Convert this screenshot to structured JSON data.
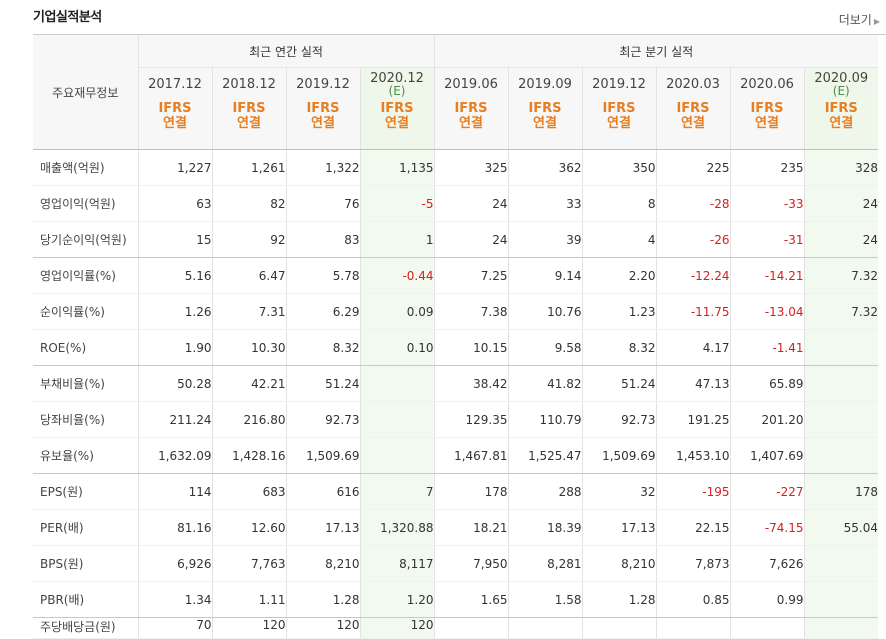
{
  "section": {
    "title": "기업실적분석",
    "more": "더보기"
  },
  "header": {
    "row_label": "주요재무정보",
    "annual_group": "최근 연간 실적",
    "quarter_group": "최근 분기 실적",
    "ifrs": "IFRS",
    "consolidated": "연결",
    "periods": [
      {
        "label": "2017.12",
        "est": ""
      },
      {
        "label": "2018.12",
        "est": ""
      },
      {
        "label": "2019.12",
        "est": ""
      },
      {
        "label": "2020.12",
        "est": "(E)"
      },
      {
        "label": "2019.06",
        "est": ""
      },
      {
        "label": "2019.09",
        "est": ""
      },
      {
        "label": "2019.12",
        "est": ""
      },
      {
        "label": "2020.03",
        "est": ""
      },
      {
        "label": "2020.06",
        "est": ""
      },
      {
        "label": "2020.09",
        "est": "(E)"
      }
    ]
  },
  "rows": [
    {
      "label": "매출액(억원)",
      "values": [
        "1,227",
        "1,261",
        "1,322",
        "1,135",
        "325",
        "362",
        "350",
        "225",
        "235",
        "328"
      ]
    },
    {
      "label": "영업이익(억원)",
      "values": [
        "63",
        "82",
        "76",
        "-5",
        "24",
        "33",
        "8",
        "-28",
        "-33",
        "24"
      ]
    },
    {
      "label": "당기순이익(억원)",
      "values": [
        "15",
        "92",
        "83",
        "1",
        "24",
        "39",
        "4",
        "-26",
        "-31",
        "24"
      ]
    },
    {
      "label": "영업이익률(%)",
      "values": [
        "5.16",
        "6.47",
        "5.78",
        "-0.44",
        "7.25",
        "9.14",
        "2.20",
        "-12.24",
        "-14.21",
        "7.32"
      ]
    },
    {
      "label": "순이익률(%)",
      "values": [
        "1.26",
        "7.31",
        "6.29",
        "0.09",
        "7.38",
        "10.76",
        "1.23",
        "-11.75",
        "-13.04",
        "7.32"
      ]
    },
    {
      "label": "ROE(%)",
      "values": [
        "1.90",
        "10.30",
        "8.32",
        "0.10",
        "10.15",
        "9.58",
        "8.32",
        "4.17",
        "-1.41",
        ""
      ]
    },
    {
      "label": "부채비율(%)",
      "values": [
        "50.28",
        "42.21",
        "51.24",
        "",
        "38.42",
        "41.82",
        "51.24",
        "47.13",
        "65.89",
        ""
      ]
    },
    {
      "label": "당좌비율(%)",
      "values": [
        "211.24",
        "216.80",
        "92.73",
        "",
        "129.35",
        "110.79",
        "92.73",
        "191.25",
        "201.20",
        ""
      ]
    },
    {
      "label": "유보율(%)",
      "values": [
        "1,632.09",
        "1,428.16",
        "1,509.69",
        "",
        "1,467.81",
        "1,525.47",
        "1,509.69",
        "1,453.10",
        "1,407.69",
        ""
      ]
    },
    {
      "label": "EPS(원)",
      "values": [
        "114",
        "683",
        "616",
        "7",
        "178",
        "288",
        "32",
        "-195",
        "-227",
        "178"
      ]
    },
    {
      "label": "PER(배)",
      "values": [
        "81.16",
        "12.60",
        "17.13",
        "1,320.88",
        "18.21",
        "18.39",
        "17.13",
        "22.15",
        "-74.15",
        "55.04"
      ]
    },
    {
      "label": "BPS(원)",
      "values": [
        "6,926",
        "7,763",
        "8,210",
        "8,117",
        "7,950",
        "8,281",
        "8,210",
        "7,873",
        "7,626",
        ""
      ]
    },
    {
      "label": "PBR(배)",
      "values": [
        "1.34",
        "1.11",
        "1.28",
        "1.20",
        "1.65",
        "1.58",
        "1.28",
        "0.85",
        "0.99",
        ""
      ]
    },
    {
      "label": "주당배당금(원)",
      "values": [
        "70",
        "120",
        "120",
        "120",
        "",
        "",
        "",
        "",
        "",
        ""
      ]
    }
  ]
}
